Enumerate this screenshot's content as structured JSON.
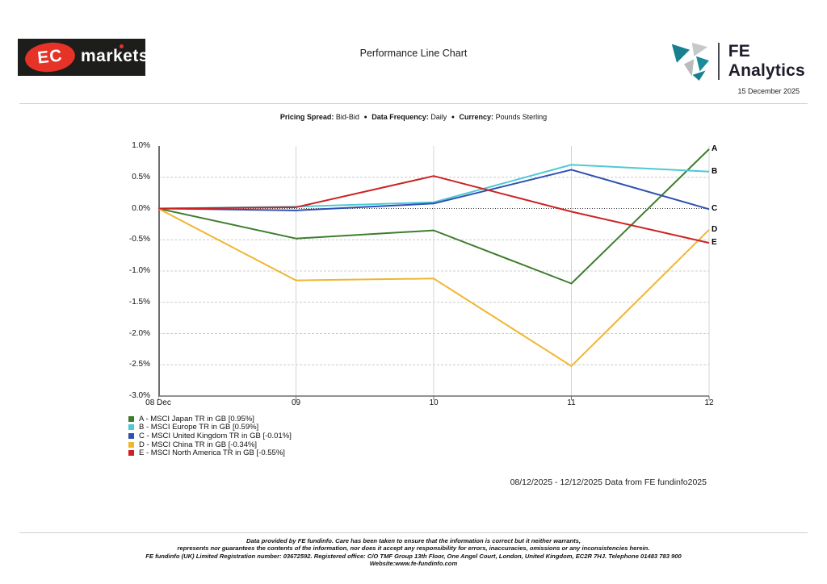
{
  "header": {
    "logo_ec_text": "EC",
    "logo_markets_text": "markets",
    "title": "Performance Line Chart",
    "fe_brand": "FE Analytics",
    "report_date": "15 December 2025"
  },
  "meta_line": {
    "pricing_spread_label": "Pricing Spread:",
    "pricing_spread_value": "Bid-Bid",
    "bullet": "●",
    "data_frequency_label": "Data Frequency:",
    "data_frequency_value": "Daily",
    "currency_label": "Currency:",
    "currency_value": "Pounds Sterling"
  },
  "chart_data": {
    "type": "line",
    "title": "Performance Line Chart",
    "x": [
      "08 Dec",
      "09",
      "10",
      "11",
      "12"
    ],
    "yticks": [
      "1.0%",
      "0.5%",
      "0.0%",
      "-0.5%",
      "-1.0%",
      "-1.5%",
      "-2.0%",
      "-2.5%",
      "-3.0%"
    ],
    "ylim": [
      -3.0,
      1.0
    ],
    "ytick_step": 0.5,
    "grid": true,
    "legend_position": "bottom-left",
    "series": [
      {
        "id": "A",
        "name": "A - MSCI Japan TR in GB [0.95%]",
        "color": "#3e7d2d",
        "values": [
          0,
          -0.48,
          -0.35,
          -1.2,
          0.95
        ]
      },
      {
        "id": "B",
        "name": "B - MSCI Europe TR in GB [0.59%]",
        "color": "#4ec9d6",
        "values": [
          0,
          0.03,
          0.1,
          0.7,
          0.59
        ]
      },
      {
        "id": "C",
        "name": "C - MSCI United Kingdom TR in GB [-0.01%]",
        "color": "#3050b2",
        "values": [
          0,
          -0.03,
          0.08,
          0.62,
          -0.01
        ]
      },
      {
        "id": "D",
        "name": "D - MSCI China TR in GB [-0.34%]",
        "color": "#f0b62f",
        "values": [
          0,
          -1.15,
          -1.12,
          -2.52,
          -0.34
        ]
      },
      {
        "id": "E",
        "name": "E - MSCI North America TR in GB [-0.55%]",
        "color": "#cc2222",
        "values": [
          0,
          0.02,
          0.52,
          -0.05,
          -0.55
        ]
      }
    ]
  },
  "footer": {
    "range_note": "08/12/2025 - 12/12/2025 Data from FE fundinfo2025",
    "disclaimer_lines": [
      "Data provided by FE fundinfo. Care has been taken to ensure that the information is correct but it neither warrants,",
      "represents nor guarantees the contents of the information, nor does it accept any responsibility for errors, inaccuracies, omissions or any inconsistencies herein.",
      "FE fundinfo (UK) Limited Registration number: 03672592. Registered office: C/O TMF Group 13th Floor, One Angel Court, London, United Kingdom, EC2R 7HJ. Telephone 01483 783 900",
      "Website:www.fe-fundinfo.com"
    ]
  }
}
